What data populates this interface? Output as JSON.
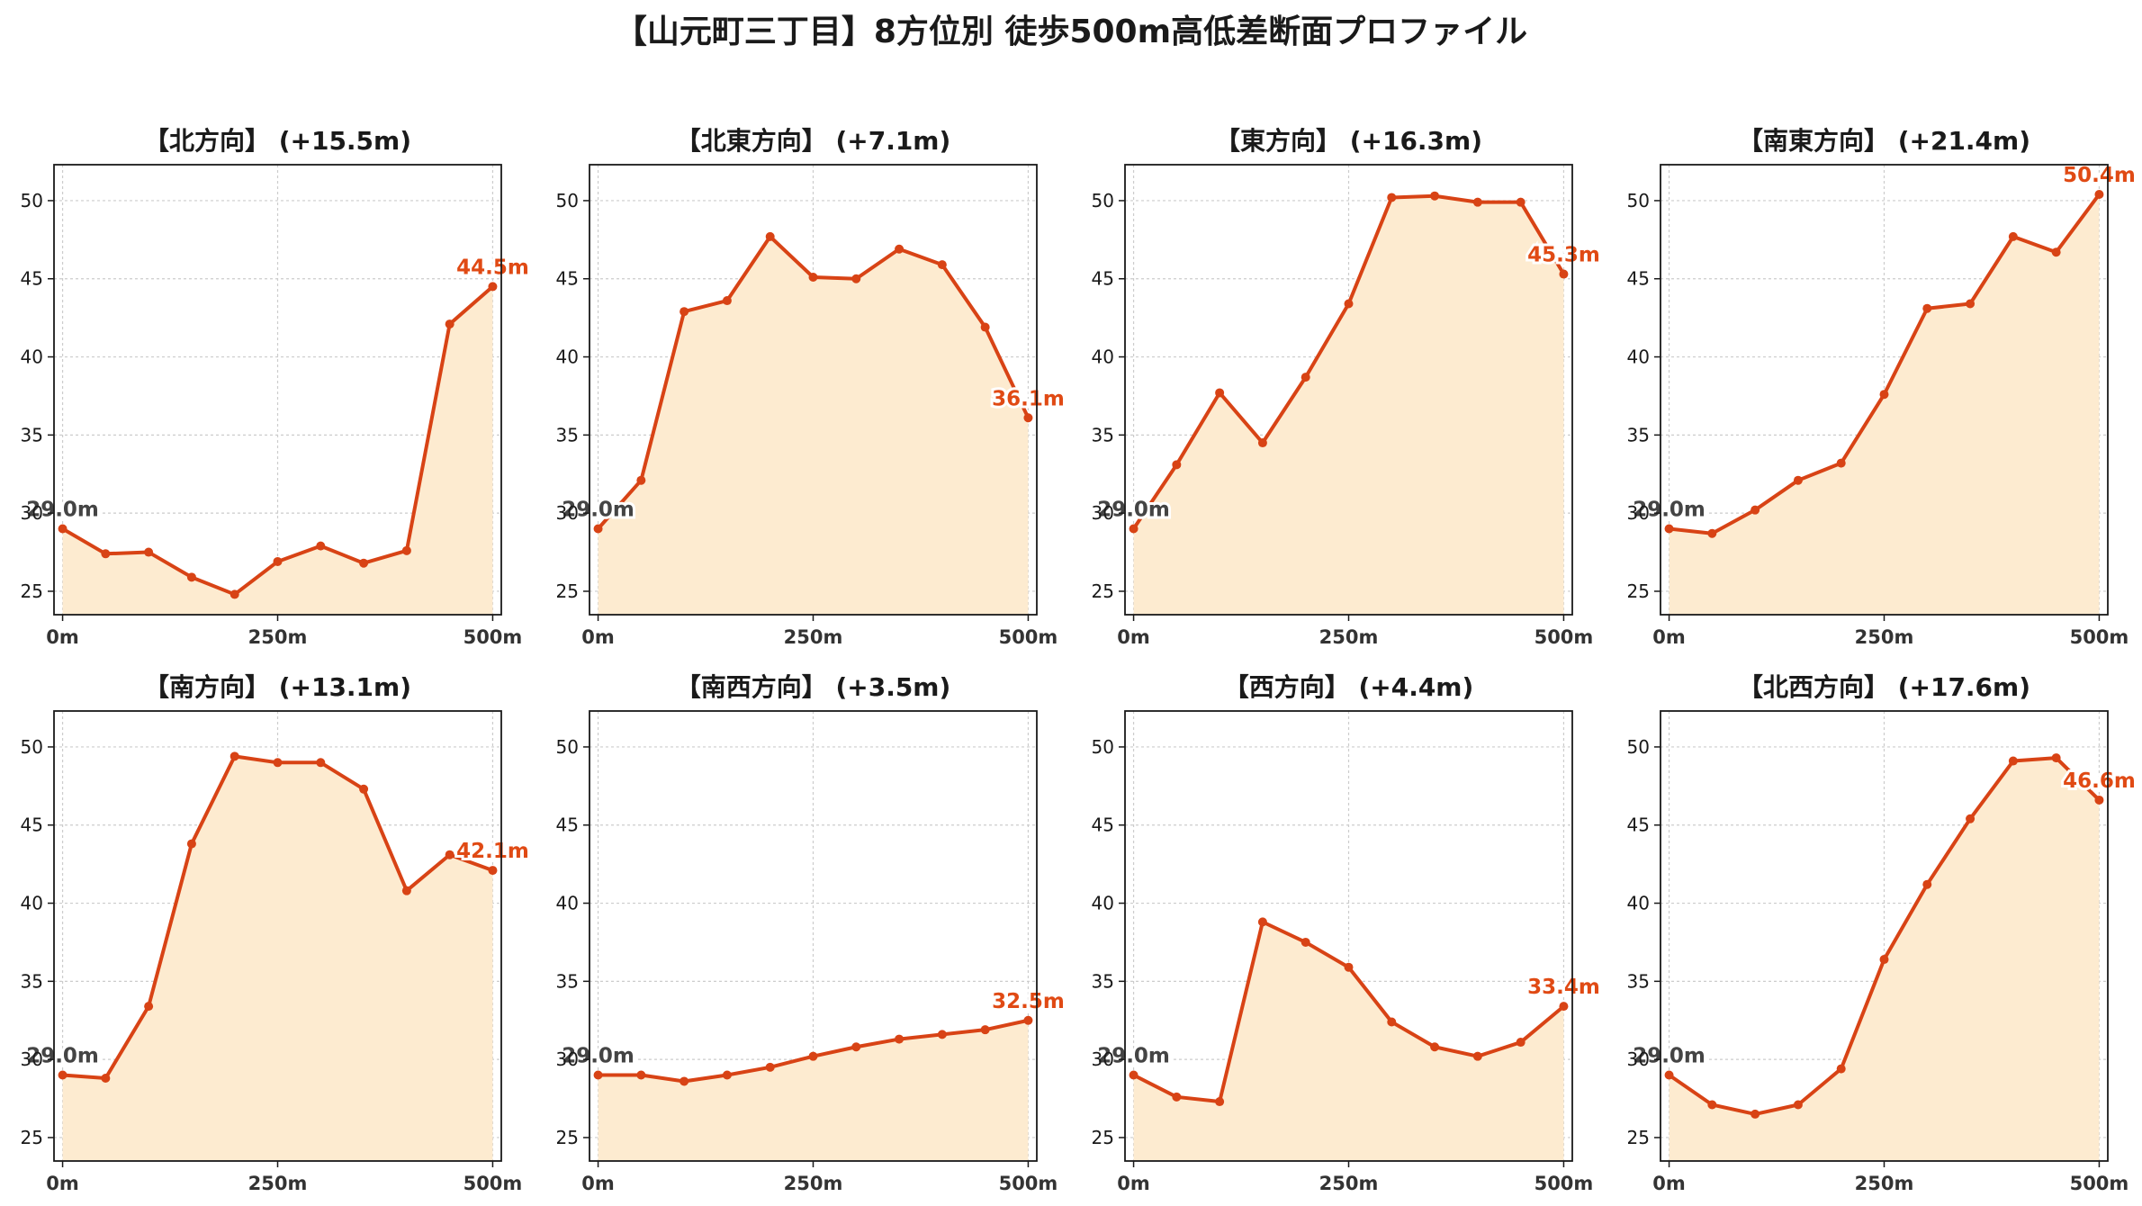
{
  "title": "【山元町三丁目】8方位別 徒歩500m高低差断面プロファイル",
  "colors": {
    "line": "#d84315",
    "fill": "#fdebd0",
    "grid": "#cccccc",
    "start_label": "#444444",
    "end_label": "#e04a14"
  },
  "chart_data": [
    {
      "type": "area",
      "title": "【北方向】 (+15.5m)",
      "x": [
        0,
        50,
        100,
        150,
        200,
        250,
        300,
        350,
        400,
        450,
        500
      ],
      "values": [
        29.0,
        27.4,
        27.5,
        25.9,
        24.8,
        26.9,
        27.9,
        26.8,
        27.6,
        42.1,
        44.5
      ],
      "start_label": "29.0m",
      "end_label": "44.5m",
      "xticks": [
        "0m",
        "250m",
        "500m"
      ],
      "xtick_values": [
        0,
        250,
        500
      ],
      "yticks": [
        25,
        30,
        35,
        40,
        45,
        50
      ],
      "ylim": [
        23.5,
        52.3
      ],
      "xlim": [
        -10,
        510
      ],
      "grid": true
    },
    {
      "type": "area",
      "title": "【北東方向】 (+7.1m)",
      "x": [
        0,
        50,
        100,
        150,
        200,
        250,
        300,
        350,
        400,
        450,
        500
      ],
      "values": [
        29.0,
        32.1,
        42.9,
        43.6,
        47.7,
        45.1,
        45.0,
        46.9,
        45.9,
        41.9,
        36.1
      ],
      "start_label": "29.0m",
      "end_label": "36.1m",
      "xticks": [
        "0m",
        "250m",
        "500m"
      ],
      "xtick_values": [
        0,
        250,
        500
      ],
      "yticks": [
        25,
        30,
        35,
        40,
        45,
        50
      ],
      "ylim": [
        23.5,
        52.3
      ],
      "xlim": [
        -10,
        510
      ],
      "grid": true
    },
    {
      "type": "area",
      "title": "【東方向】 (+16.3m)",
      "x": [
        0,
        50,
        100,
        150,
        200,
        250,
        300,
        350,
        400,
        450,
        500
      ],
      "values": [
        29.0,
        33.1,
        37.7,
        34.5,
        38.7,
        43.4,
        50.2,
        50.3,
        49.9,
        49.9,
        45.3
      ],
      "start_label": "29.0m",
      "end_label": "45.3m",
      "xticks": [
        "0m",
        "250m",
        "500m"
      ],
      "xtick_values": [
        0,
        250,
        500
      ],
      "yticks": [
        25,
        30,
        35,
        40,
        45,
        50
      ],
      "ylim": [
        23.5,
        52.3
      ],
      "xlim": [
        -10,
        510
      ],
      "grid": true
    },
    {
      "type": "area",
      "title": "【南東方向】 (+21.4m)",
      "x": [
        0,
        50,
        100,
        150,
        200,
        250,
        300,
        350,
        400,
        450,
        500
      ],
      "values": [
        29.0,
        28.7,
        30.2,
        32.1,
        33.2,
        37.6,
        43.1,
        43.4,
        47.7,
        46.7,
        50.4
      ],
      "start_label": "29.0m",
      "end_label": "50.4m",
      "xticks": [
        "0m",
        "250m",
        "500m"
      ],
      "xtick_values": [
        0,
        250,
        500
      ],
      "yticks": [
        25,
        30,
        35,
        40,
        45,
        50
      ],
      "ylim": [
        23.5,
        52.3
      ],
      "xlim": [
        -10,
        510
      ],
      "grid": true
    },
    {
      "type": "area",
      "title": "【南方向】 (+13.1m)",
      "x": [
        0,
        50,
        100,
        150,
        200,
        250,
        300,
        350,
        400,
        450,
        500
      ],
      "values": [
        29.0,
        28.8,
        33.4,
        43.8,
        49.4,
        49.0,
        49.0,
        47.3,
        40.8,
        43.1,
        42.1
      ],
      "start_label": "29.0m",
      "end_label": "42.1m",
      "xticks": [
        "0m",
        "250m",
        "500m"
      ],
      "xtick_values": [
        0,
        250,
        500
      ],
      "yticks": [
        25,
        30,
        35,
        40,
        45,
        50
      ],
      "ylim": [
        23.5,
        52.3
      ],
      "xlim": [
        -10,
        510
      ],
      "grid": true
    },
    {
      "type": "area",
      "title": "【南西方向】 (+3.5m)",
      "x": [
        0,
        50,
        100,
        150,
        200,
        250,
        300,
        350,
        400,
        450,
        500
      ],
      "values": [
        29.0,
        29.0,
        28.6,
        29.0,
        29.5,
        30.2,
        30.8,
        31.3,
        31.6,
        31.9,
        32.5
      ],
      "start_label": "29.0m",
      "end_label": "32.5m",
      "xticks": [
        "0m",
        "250m",
        "500m"
      ],
      "xtick_values": [
        0,
        250,
        500
      ],
      "yticks": [
        25,
        30,
        35,
        40,
        45,
        50
      ],
      "ylim": [
        23.5,
        52.3
      ],
      "xlim": [
        -10,
        510
      ],
      "grid": true
    },
    {
      "type": "area",
      "title": "【西方向】 (+4.4m)",
      "x": [
        0,
        50,
        100,
        150,
        200,
        250,
        300,
        350,
        400,
        450,
        500
      ],
      "values": [
        29.0,
        27.6,
        27.3,
        38.8,
        37.5,
        35.9,
        32.4,
        30.8,
        30.2,
        31.1,
        33.4
      ],
      "start_label": "29.0m",
      "end_label": "33.4m",
      "xticks": [
        "0m",
        "250m",
        "500m"
      ],
      "xtick_values": [
        0,
        250,
        500
      ],
      "yticks": [
        25,
        30,
        35,
        40,
        45,
        50
      ],
      "ylim": [
        23.5,
        52.3
      ],
      "xlim": [
        -10,
        510
      ],
      "grid": true
    },
    {
      "type": "area",
      "title": "【北西方向】 (+17.6m)",
      "x": [
        0,
        50,
        100,
        150,
        200,
        250,
        300,
        350,
        400,
        450,
        500
      ],
      "values": [
        29.0,
        27.1,
        26.5,
        27.1,
        29.4,
        36.4,
        41.2,
        45.4,
        49.1,
        49.3,
        46.6
      ],
      "start_label": "29.0m",
      "end_label": "46.6m",
      "xticks": [
        "0m",
        "250m",
        "500m"
      ],
      "xtick_values": [
        0,
        250,
        500
      ],
      "yticks": [
        25,
        30,
        35,
        40,
        45,
        50
      ],
      "ylim": [
        23.5,
        52.3
      ],
      "xlim": [
        -10,
        510
      ],
      "grid": true
    }
  ]
}
